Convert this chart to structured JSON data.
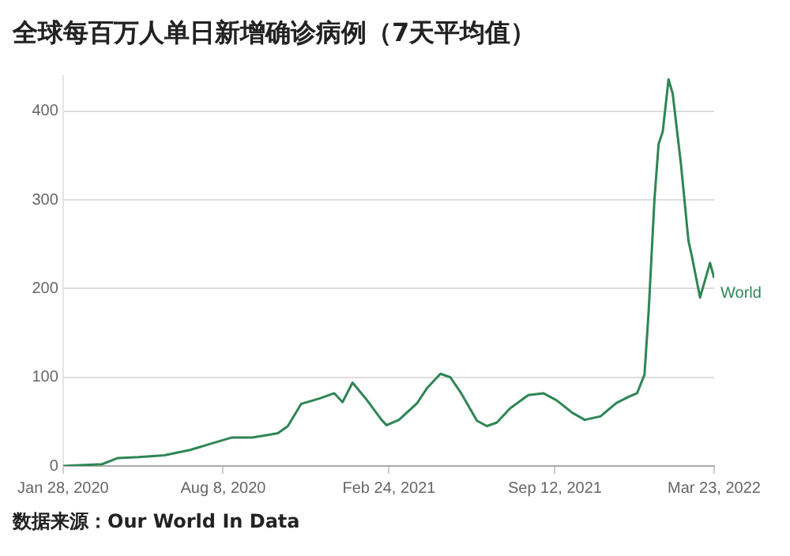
{
  "chart_data": {
    "type": "line",
    "title": "全球每百万人单日新增确诊病例（7天平均值）",
    "annotations": [
      "数据来源：Our World In Data"
    ],
    "x": [
      "2020-01-28",
      "2020-03-15",
      "2020-04-03",
      "2020-04-28",
      "2020-05-29",
      "2020-06-29",
      "2020-07-24",
      "2020-08-18",
      "2020-09-12",
      "2020-10-01",
      "2020-10-13",
      "2020-10-25",
      "2020-11-10",
      "2020-12-02",
      "2020-12-20",
      "2020-12-30",
      "2021-01-11",
      "2021-01-27",
      "2021-02-15",
      "2021-02-21",
      "2021-03-08",
      "2021-03-30",
      "2021-04-11",
      "2021-04-27",
      "2021-05-09",
      "2021-05-22",
      "2021-06-10",
      "2021-06-22",
      "2021-07-04",
      "2021-07-20",
      "2021-08-11",
      "2021-08-29",
      "2021-09-14",
      "2021-10-03",
      "2021-10-18",
      "2021-11-06",
      "2021-11-25",
      "2021-12-10",
      "2021-12-20",
      "2021-12-29",
      "2022-01-03",
      "2022-01-10",
      "2022-01-15",
      "2022-01-20",
      "2022-01-27",
      "2022-02-01",
      "2022-02-11",
      "2022-02-20",
      "2022-02-24",
      "2022-03-06",
      "2022-03-18",
      "2022-03-23"
    ],
    "series": [
      {
        "name": "World",
        "color": "#2e8555",
        "values": [
          0,
          2,
          9,
          10,
          12,
          18,
          25,
          32,
          32,
          35,
          37,
          45,
          70,
          76,
          82,
          72,
          94,
          76,
          52,
          46,
          52,
          71,
          88,
          104,
          100,
          82,
          51,
          45,
          49,
          65,
          80,
          82,
          74,
          60,
          52,
          56,
          71,
          78,
          82,
          103,
          174,
          300,
          363,
          377,
          436,
          420,
          340,
          254,
          237,
          190,
          229,
          212
        ]
      }
    ],
    "xlim": [
      "2020-01-28",
      "2022-03-23"
    ],
    "xticks": [
      {
        "value": "2020-01-28",
        "label": "Jan 28, 2020"
      },
      {
        "value": "2020-08-08",
        "label": "Aug 8, 2020"
      },
      {
        "value": "2021-02-24",
        "label": "Feb 24, 2021"
      },
      {
        "value": "2021-09-12",
        "label": "Sep 12, 2021"
      },
      {
        "value": "2022-03-23",
        "label": "Mar 23, 2022"
      }
    ],
    "ylim": [
      0,
      440
    ],
    "yticks": [
      0,
      100,
      200,
      300,
      400
    ],
    "grid": "y",
    "marker": "none",
    "line_style": "solid",
    "legend": false
  }
}
